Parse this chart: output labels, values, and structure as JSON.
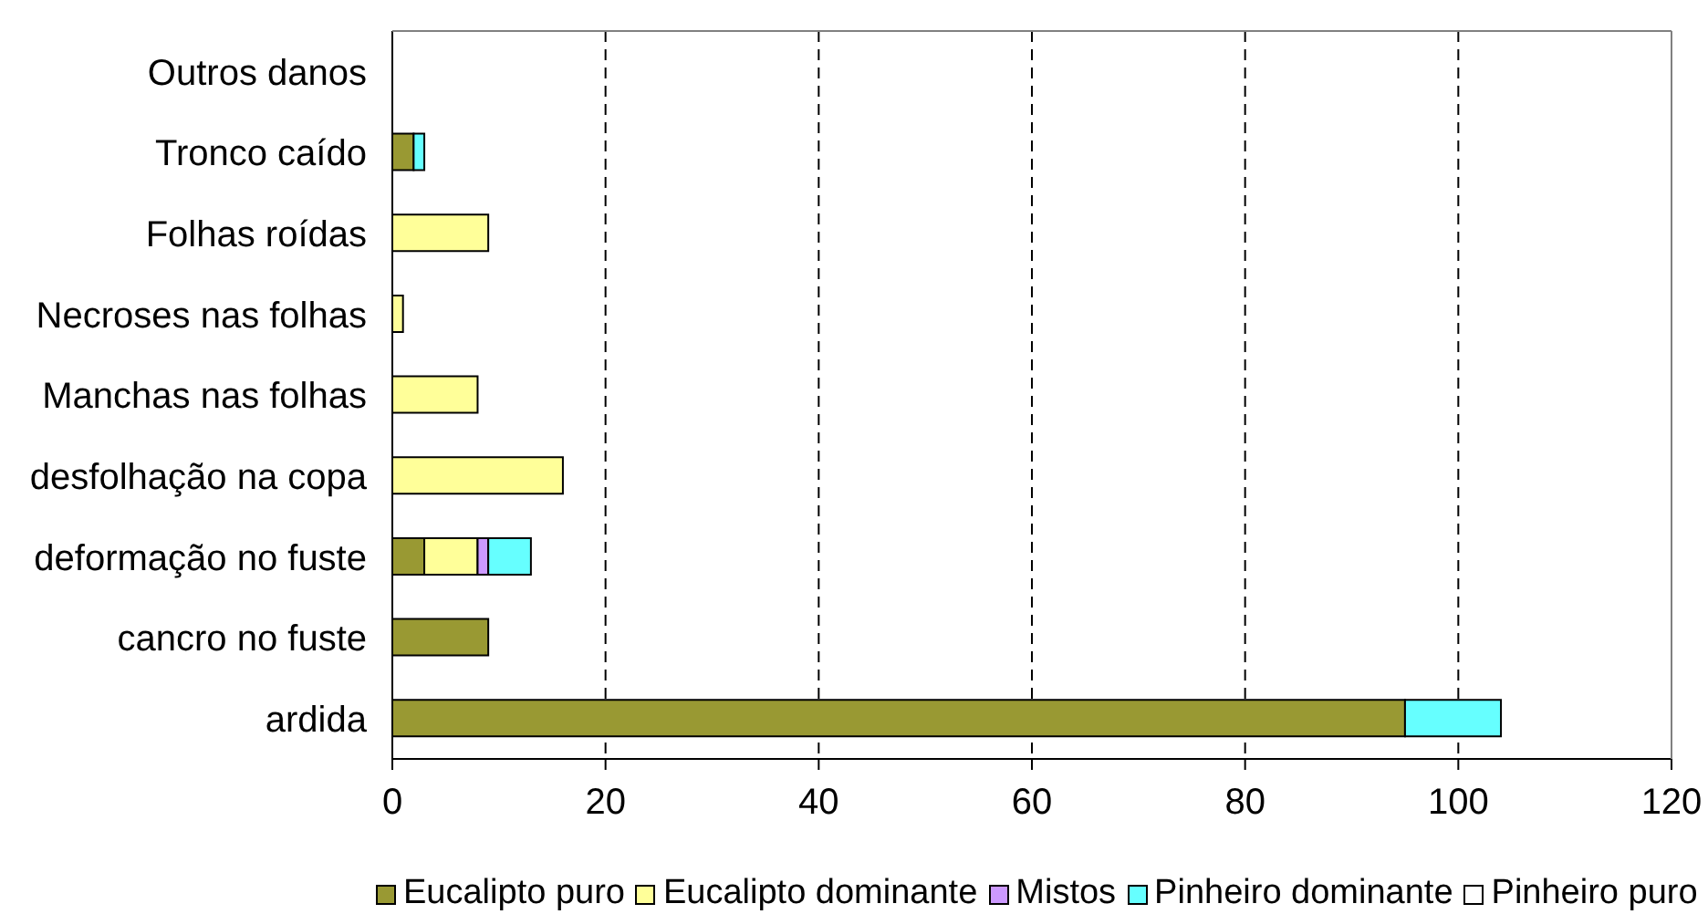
{
  "chart_data": {
    "type": "bar",
    "orientation": "horizontal",
    "stacked": true,
    "categories": [
      "Outros danos",
      "Tronco caído",
      "Folhas roídas",
      "Necroses nas folhas",
      "Manchas nas folhas",
      "desfolhação na copa",
      "deformação no fuste",
      "cancro no fuste",
      "ardida"
    ],
    "series": [
      {
        "name": "Eucalipto puro",
        "color": "#999933",
        "values": [
          0,
          2,
          0,
          0,
          0,
          0,
          3,
          9,
          95
        ]
      },
      {
        "name": "Eucalipto dominante",
        "color": "#ffff99",
        "values": [
          0,
          0,
          9,
          1,
          8,
          16,
          5,
          0,
          0
        ]
      },
      {
        "name": "Mistos",
        "color": "#cc99ff",
        "values": [
          0,
          0,
          0,
          0,
          0,
          0,
          1,
          0,
          0
        ]
      },
      {
        "name": "Pinheiro dominante",
        "color": "#66ffff",
        "values": [
          0,
          1,
          0,
          0,
          0,
          0,
          4,
          0,
          9
        ]
      },
      {
        "name": "Pinheiro puro",
        "color": "#ffffff",
        "values": [
          0,
          0,
          0,
          0,
          0,
          0,
          0,
          0,
          0
        ]
      }
    ],
    "xlim": [
      0,
      120
    ],
    "xticks": [
      0,
      20,
      40,
      60,
      80,
      100,
      120
    ],
    "grid": "x",
    "legend": "bottom"
  }
}
